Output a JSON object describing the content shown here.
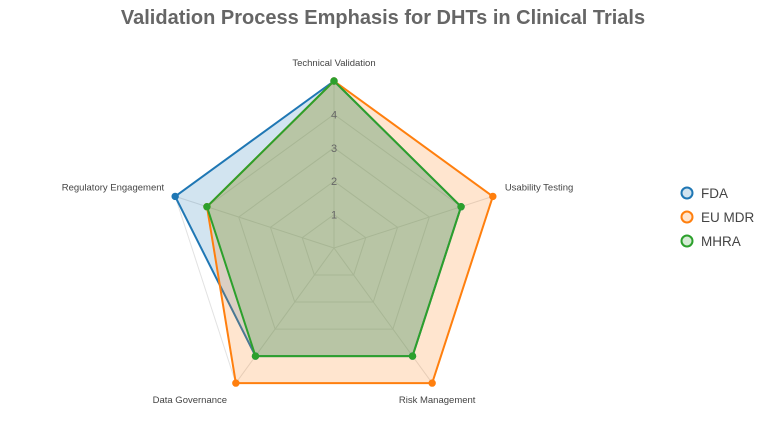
{
  "chart_data": {
    "type": "radar",
    "title": "Validation Process Emphasis for DHTs in Clinical Trials",
    "axes": [
      "Technical Validation",
      "Usability Testing",
      "Risk Management",
      "Data Governance",
      "Regulatory Engagement"
    ],
    "r_range": [
      0,
      5
    ],
    "ticks": [
      1,
      2,
      3,
      4
    ],
    "grid": true,
    "legend_position": "right",
    "series": [
      {
        "name": "FDA",
        "values": [
          5,
          4,
          4,
          4,
          5
        ],
        "color": "#1f77b4",
        "fill": "rgba(31,119,180,0.2)"
      },
      {
        "name": "EU MDR",
        "values": [
          5,
          5,
          5,
          5,
          4
        ],
        "color": "#ff7f0e",
        "fill": "rgba(255,127,14,0.2)"
      },
      {
        "name": "MHRA",
        "values": [
          5,
          4,
          4,
          4,
          4
        ],
        "color": "#2ca02c",
        "fill": "rgba(44,160,44,0.2)"
      }
    ]
  }
}
